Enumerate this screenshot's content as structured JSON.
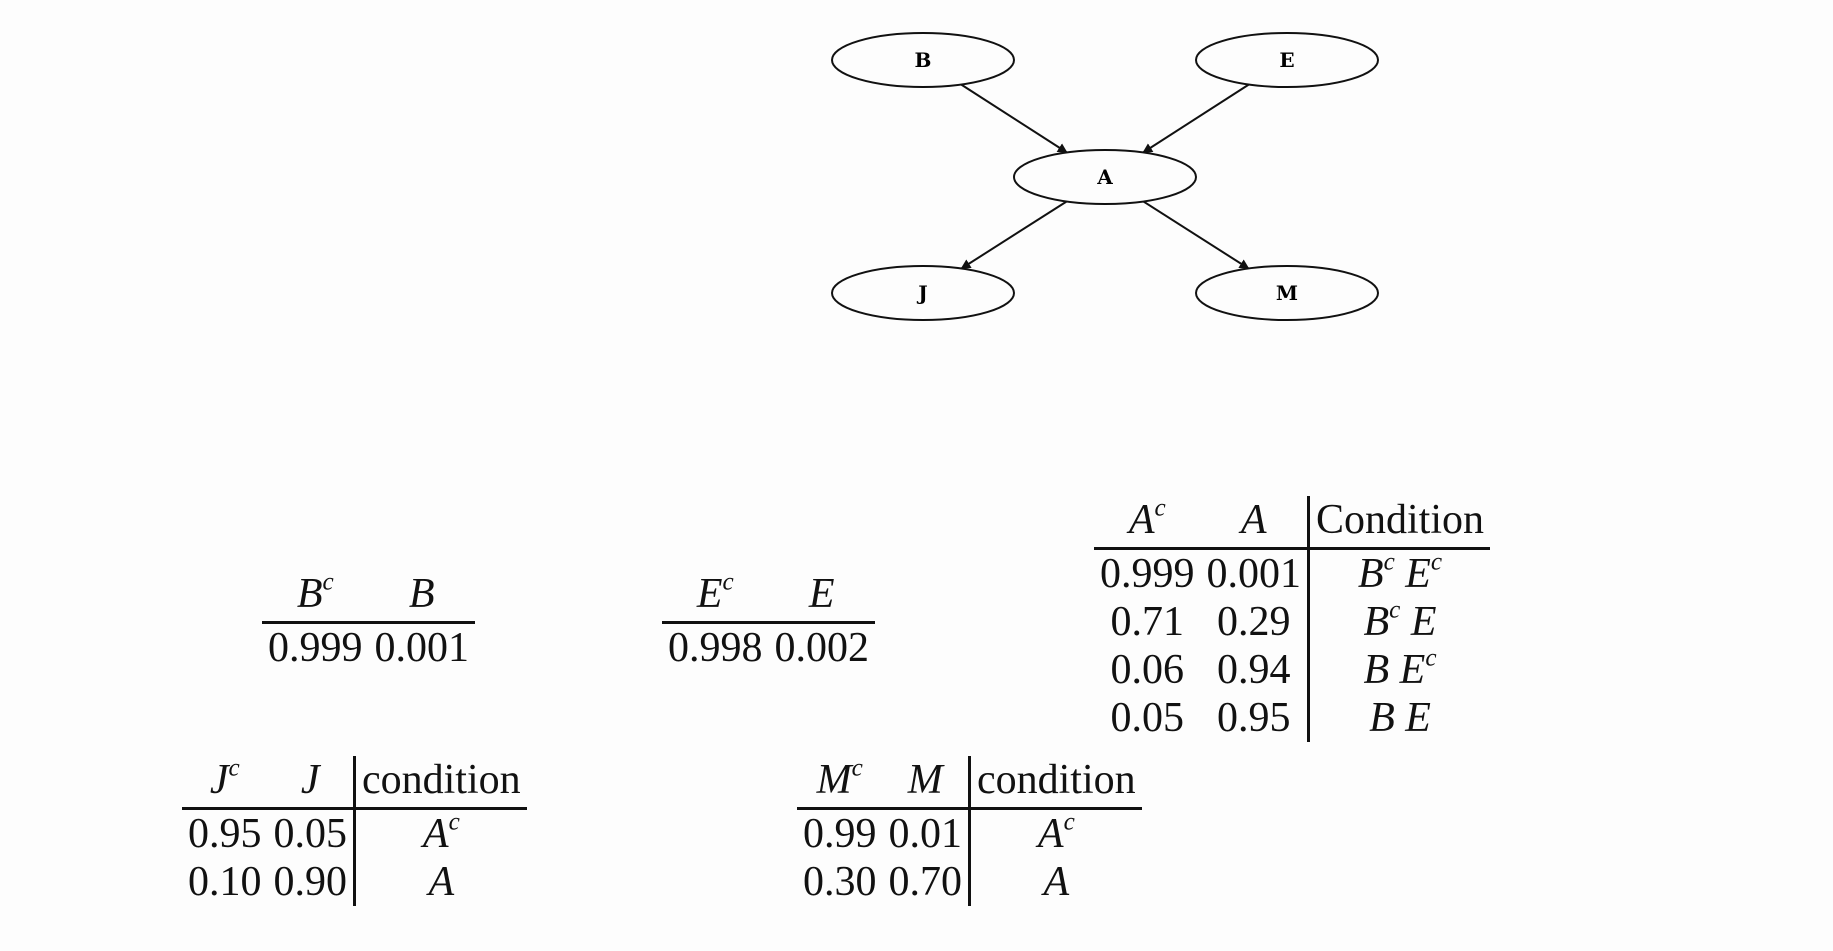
{
  "graph": {
    "nodes": [
      {
        "id": "B",
        "label": "B"
      },
      {
        "id": "E",
        "label": "E"
      },
      {
        "id": "A",
        "label": "A"
      },
      {
        "id": "J",
        "label": "J"
      },
      {
        "id": "M",
        "label": "M"
      }
    ],
    "edges": [
      [
        "B",
        "A"
      ],
      [
        "E",
        "A"
      ],
      [
        "A",
        "J"
      ],
      [
        "A",
        "M"
      ]
    ]
  },
  "tables": {
    "b": {
      "headers": [
        {
          "base": "B",
          "sup": "c"
        },
        {
          "base": "B",
          "sup": ""
        }
      ],
      "rows": [
        [
          "0.999",
          "0.001"
        ]
      ]
    },
    "e": {
      "headers": [
        {
          "base": "E",
          "sup": "c"
        },
        {
          "base": "E",
          "sup": ""
        }
      ],
      "rows": [
        [
          "0.998",
          "0.002"
        ]
      ]
    },
    "a": {
      "headers": [
        {
          "base": "A",
          "sup": "c"
        },
        {
          "base": "A",
          "sup": ""
        }
      ],
      "cond_header": "Condition",
      "rows": [
        {
          "v": [
            "0.999",
            "0.001"
          ],
          "cond": [
            {
              "base": "B",
              "sup": "c"
            },
            {
              "base": "E",
              "sup": "c"
            }
          ]
        },
        {
          "v": [
            "0.71",
            "0.29"
          ],
          "cond": [
            {
              "base": "B",
              "sup": "c"
            },
            {
              "base": "E",
              "sup": ""
            }
          ]
        },
        {
          "v": [
            "0.06",
            "0.94"
          ],
          "cond": [
            {
              "base": "B",
              "sup": ""
            },
            {
              "base": "E",
              "sup": "c"
            }
          ]
        },
        {
          "v": [
            "0.05",
            "0.95"
          ],
          "cond": [
            {
              "base": "B",
              "sup": ""
            },
            {
              "base": "E",
              "sup": ""
            }
          ]
        }
      ]
    },
    "j": {
      "headers": [
        {
          "base": "J",
          "sup": "c"
        },
        {
          "base": "J",
          "sup": ""
        }
      ],
      "cond_header": "condition",
      "rows": [
        {
          "v": [
            "0.95",
            "0.05"
          ],
          "cond": [
            {
              "base": "A",
              "sup": "c"
            }
          ]
        },
        {
          "v": [
            "0.10",
            "0.90"
          ],
          "cond": [
            {
              "base": "A",
              "sup": ""
            }
          ]
        }
      ]
    },
    "m": {
      "headers": [
        {
          "base": "M",
          "sup": "c"
        },
        {
          "base": "M",
          "sup": ""
        }
      ],
      "cond_header": "condition",
      "rows": [
        {
          "v": [
            "0.99",
            "0.01"
          ],
          "cond": [
            {
              "base": "A",
              "sup": "c"
            }
          ]
        },
        {
          "v": [
            "0.30",
            "0.70"
          ],
          "cond": [
            {
              "base": "A",
              "sup": ""
            }
          ]
        }
      ]
    }
  }
}
